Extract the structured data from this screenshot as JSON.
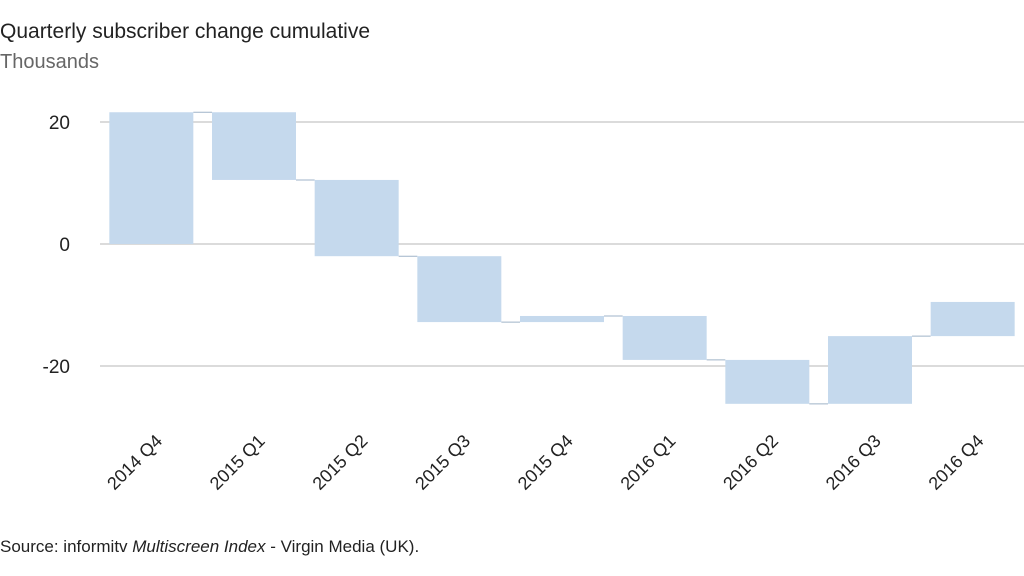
{
  "chart_data": {
    "type": "waterfall",
    "title": "Quarterly subscriber change cumulative",
    "subtitle": "Thousands",
    "categories": [
      "2014 Q4",
      "2015 Q1",
      "2015 Q2",
      "2015 Q3",
      "2015 Q4",
      "2016 Q1",
      "2016 Q2",
      "2016 Q3",
      "2016 Q4"
    ],
    "values": [
      21.6,
      -11.1,
      -12.5,
      -10.8,
      1.0,
      -7.2,
      -7.2,
      11.1,
      5.6
    ],
    "color": "#c5d9ed",
    "ylim": [
      -28,
      24
    ],
    "yticks": [
      20,
      0,
      -20
    ],
    "grid": true,
    "source": [
      "Source: informitv ",
      "Multiscreen Index",
      " - Virgin Media (UK)."
    ]
  }
}
